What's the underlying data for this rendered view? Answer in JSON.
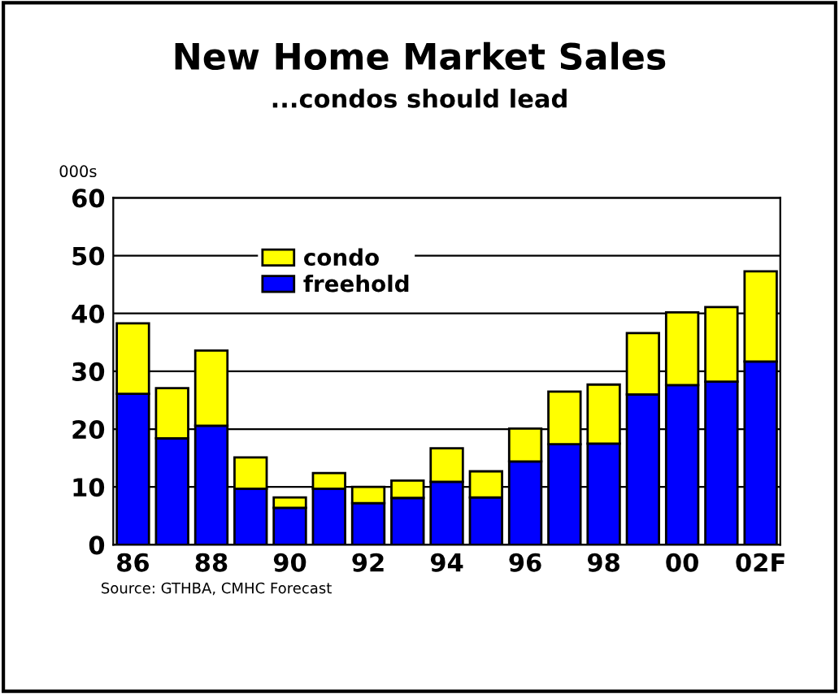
{
  "chart_data": {
    "type": "bar",
    "title": "New Home Market Sales",
    "subtitle": "...condos should lead",
    "ylabel": "000s",
    "categories": [
      "86",
      null,
      "88",
      null,
      "90",
      null,
      "92",
      null,
      "94",
      null,
      "96",
      null,
      "98",
      null,
      "00",
      null,
      "02F"
    ],
    "stacked": true,
    "series": [
      {
        "name": "freehold",
        "color": "#0000ff",
        "values": [
          26.1,
          18.4,
          20.6,
          9.7,
          6.4,
          9.7,
          7.2,
          8.1,
          10.9,
          8.2,
          14.4,
          17.4,
          17.5,
          26.0,
          27.6,
          28.2,
          31.7
        ]
      },
      {
        "name": "condo",
        "color": "#ffff00",
        "values": [
          12.2,
          8.7,
          13.0,
          5.4,
          1.8,
          2.7,
          2.8,
          3.0,
          5.8,
          4.5,
          5.7,
          9.1,
          10.2,
          10.6,
          12.6,
          12.9,
          15.6
        ]
      }
    ],
    "ylim": [
      0,
      60
    ],
    "yticks": [
      0,
      10,
      20,
      30,
      40,
      50,
      60
    ],
    "grid": "y",
    "legend": "top left",
    "annotations": [
      "Source: GTHBA, CMHC Forecast"
    ]
  }
}
